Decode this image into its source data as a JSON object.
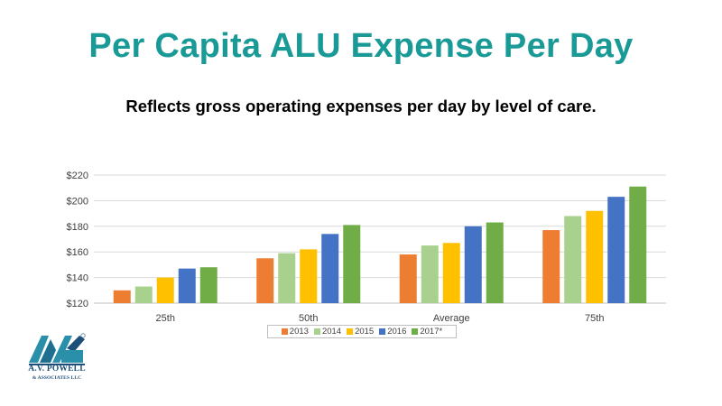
{
  "title": "Per Capita ALU Expense Per Day",
  "subtitle": "Reflects gross operating expenses per day by level of care.",
  "logo": {
    "line1": "A.V. POWELL",
    "line2": "& ASSOCIATES LLC"
  },
  "colors": {
    "title": "#1a9a96",
    "grid": "#d9d9d9",
    "axis_text": "#404040"
  },
  "chart_data": {
    "type": "bar",
    "categories": [
      "25th",
      "50th",
      "Average",
      "75th"
    ],
    "series": [
      {
        "name": "2013",
        "color": "#ed7d31",
        "values": [
          130,
          155,
          158,
          177
        ]
      },
      {
        "name": "2014",
        "color": "#a9d18e",
        "values": [
          133,
          159,
          165,
          188
        ]
      },
      {
        "name": "2015",
        "color": "#ffc000",
        "values": [
          140,
          162,
          167,
          192
        ]
      },
      {
        "name": "2016",
        "color": "#4472c4",
        "values": [
          147,
          174,
          180,
          203
        ]
      },
      {
        "name": "2017*",
        "color": "#70ad47",
        "values": [
          148,
          181,
          183,
          211
        ]
      }
    ],
    "ylim": [
      120,
      220
    ],
    "yticks": [
      120,
      140,
      160,
      180,
      200,
      220
    ],
    "ytick_labels": [
      "$120",
      "$140",
      "$160",
      "$180",
      "$200",
      "$220"
    ],
    "grid": true,
    "legend_position": "bottom"
  }
}
